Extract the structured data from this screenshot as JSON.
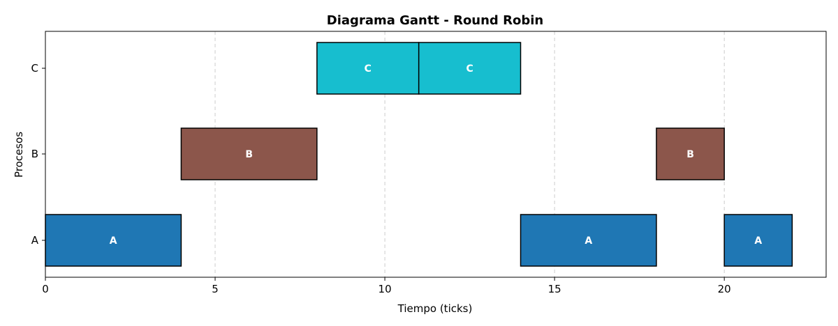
{
  "chart_data": {
    "type": "gantt",
    "title": "Diagrama Gantt - Round Robin",
    "xlabel": "Tiempo (ticks)",
    "ylabel": "Procesos",
    "xlim": [
      0,
      23
    ],
    "xticks": [
      0,
      5,
      10,
      15,
      20
    ],
    "categories": [
      "A",
      "B",
      "C"
    ],
    "grid": "x-dashed",
    "colors": {
      "A": "#1f77b4",
      "B": "#8c564b",
      "C": "#17becf"
    },
    "segments": [
      {
        "process": "A",
        "start": 0,
        "end": 4,
        "label": "A"
      },
      {
        "process": "B",
        "start": 4,
        "end": 8,
        "label": "B"
      },
      {
        "process": "C",
        "start": 8,
        "end": 11,
        "label": "C"
      },
      {
        "process": "C",
        "start": 11,
        "end": 14,
        "label": "C"
      },
      {
        "process": "A",
        "start": 14,
        "end": 18,
        "label": "A"
      },
      {
        "process": "B",
        "start": 18,
        "end": 20,
        "label": "B"
      },
      {
        "process": "A",
        "start": 20,
        "end": 22,
        "label": "A"
      }
    ]
  }
}
